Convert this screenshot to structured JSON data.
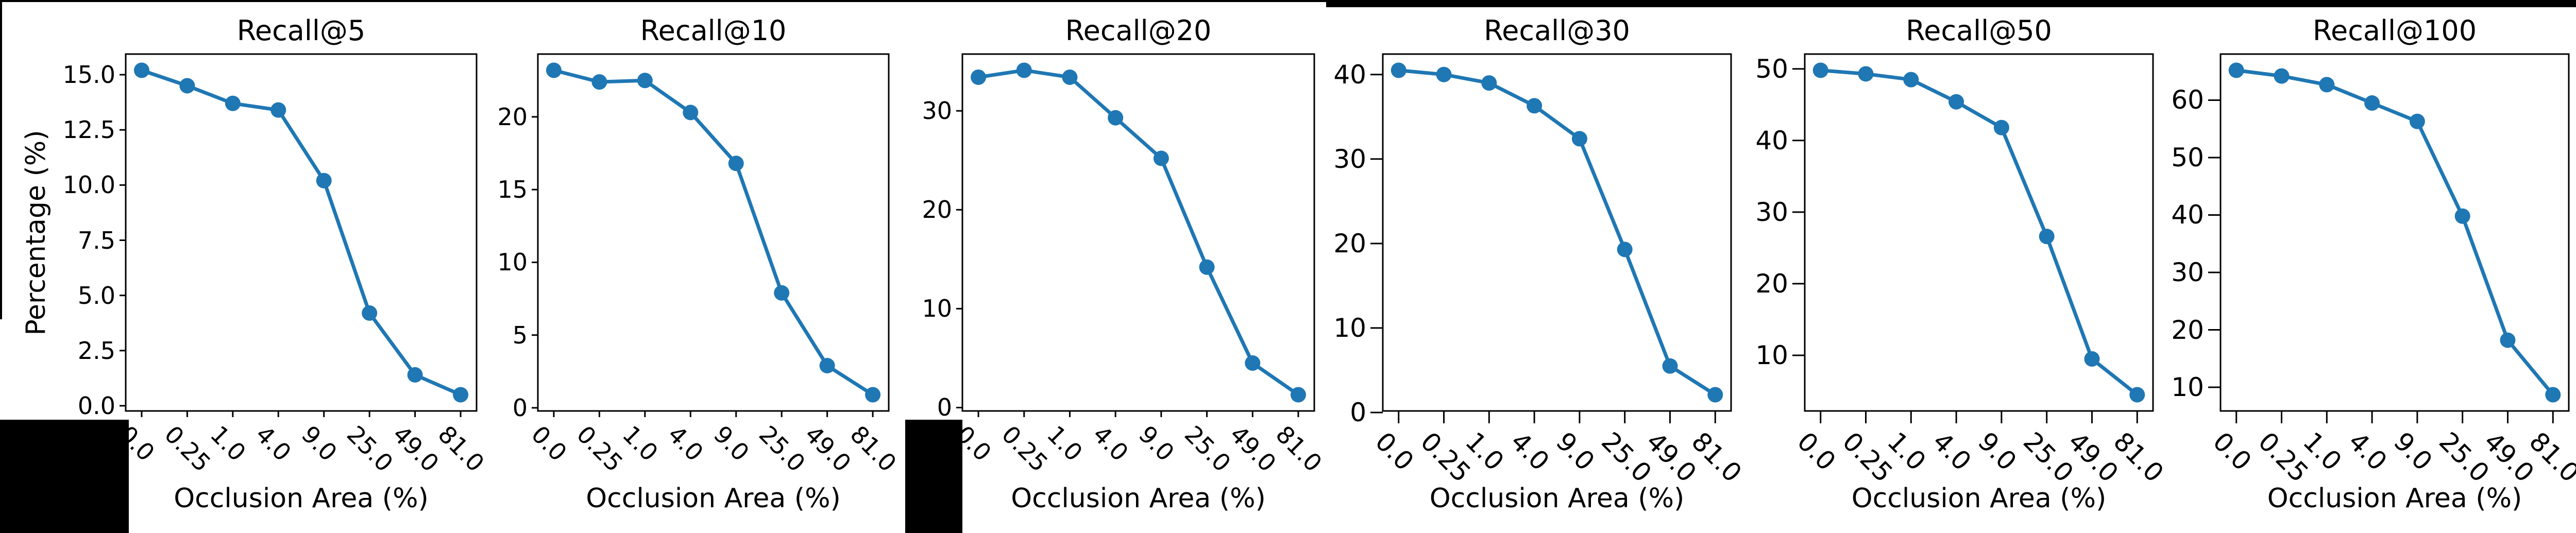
{
  "figure": {
    "ylabel": "Percentage (%)",
    "xlabel": "Occlusion Area (%)",
    "line_color": "#1f77b4",
    "axis_color": "#000000"
  },
  "chart_data": [
    {
      "type": "line",
      "title": "Recall@5",
      "xlabel": "Occlusion Area (%)",
      "ylabel": "Percentage (%)",
      "categories": [
        "0.0",
        "0.25",
        "1.0",
        "4.0",
        "9.0",
        "25.0",
        "49.0",
        "81.0"
      ],
      "values": [
        15.2,
        14.5,
        13.7,
        13.4,
        10.2,
        4.2,
        1.4,
        0.5
      ],
      "yticks": [
        0.0,
        2.5,
        5.0,
        7.5,
        10.0,
        12.5,
        15.0
      ],
      "ytick_labels": [
        "0.0",
        "2.5",
        "5.0",
        "7.5",
        "10.0",
        "12.5",
        "15.0"
      ],
      "legend": "none",
      "grid": false
    },
    {
      "type": "line",
      "title": "Recall@10",
      "xlabel": "Occlusion Area (%)",
      "categories": [
        "0.0",
        "0.25",
        "1.0",
        "4.0",
        "9.0",
        "25.0",
        "49.0",
        "81.0"
      ],
      "values": [
        23.2,
        22.4,
        22.5,
        20.3,
        16.8,
        7.9,
        2.9,
        0.9
      ],
      "yticks": [
        0,
        5,
        10,
        15,
        20
      ],
      "ytick_labels": [
        "0",
        "5",
        "10",
        "15",
        "20"
      ],
      "legend": "none",
      "grid": false
    },
    {
      "type": "line",
      "title": "Recall@20",
      "xlabel": "Occlusion Area (%)",
      "categories": [
        "0.0",
        "0.25",
        "1.0",
        "4.0",
        "9.0",
        "25.0",
        "49.0",
        "81.0"
      ],
      "values": [
        33.4,
        34.1,
        33.4,
        29.3,
        25.2,
        14.2,
        4.5,
        1.3
      ],
      "yticks": [
        0,
        10,
        20,
        30
      ],
      "ytick_labels": [
        "0",
        "10",
        "20",
        "30"
      ],
      "legend": "none",
      "grid": false
    },
    {
      "type": "line",
      "title": "Recall@30",
      "xlabel": "Occlusion Area (%)",
      "categories": [
        "0.0",
        "0.25",
        "1.0",
        "4.0",
        "9.0",
        "25.0",
        "49.0",
        "81.0"
      ],
      "values": [
        40.5,
        40.0,
        39.0,
        36.3,
        32.4,
        19.3,
        5.5,
        2.1
      ],
      "yticks": [
        0,
        10,
        20,
        30,
        40
      ],
      "ytick_labels": [
        "0",
        "10",
        "20",
        "30",
        "40"
      ],
      "legend": "none",
      "grid": false
    },
    {
      "type": "line",
      "title": "Recall@50",
      "xlabel": "Occlusion Area (%)",
      "categories": [
        "0.0",
        "0.25",
        "1.0",
        "4.0",
        "9.0",
        "25.0",
        "49.0",
        "81.0"
      ],
      "values": [
        49.8,
        49.3,
        48.5,
        45.4,
        41.8,
        26.6,
        9.5,
        4.5
      ],
      "yticks": [
        10,
        20,
        30,
        40,
        50
      ],
      "ytick_labels": [
        "10",
        "20",
        "30",
        "40",
        "50"
      ],
      "legend": "none",
      "grid": false
    },
    {
      "type": "line",
      "title": "Recall@100",
      "xlabel": "Occlusion Area (%)",
      "categories": [
        "0.0",
        "0.25",
        "1.0",
        "4.0",
        "9.0",
        "25.0",
        "49.0",
        "81.0"
      ],
      "values": [
        65.2,
        64.2,
        62.7,
        59.5,
        56.3,
        39.8,
        18.2,
        8.7
      ],
      "yticks": [
        10,
        20,
        30,
        40,
        50,
        60
      ],
      "ytick_labels": [
        "10",
        "20",
        "30",
        "40",
        "50",
        "60"
      ],
      "legend": "none",
      "grid": false
    }
  ]
}
